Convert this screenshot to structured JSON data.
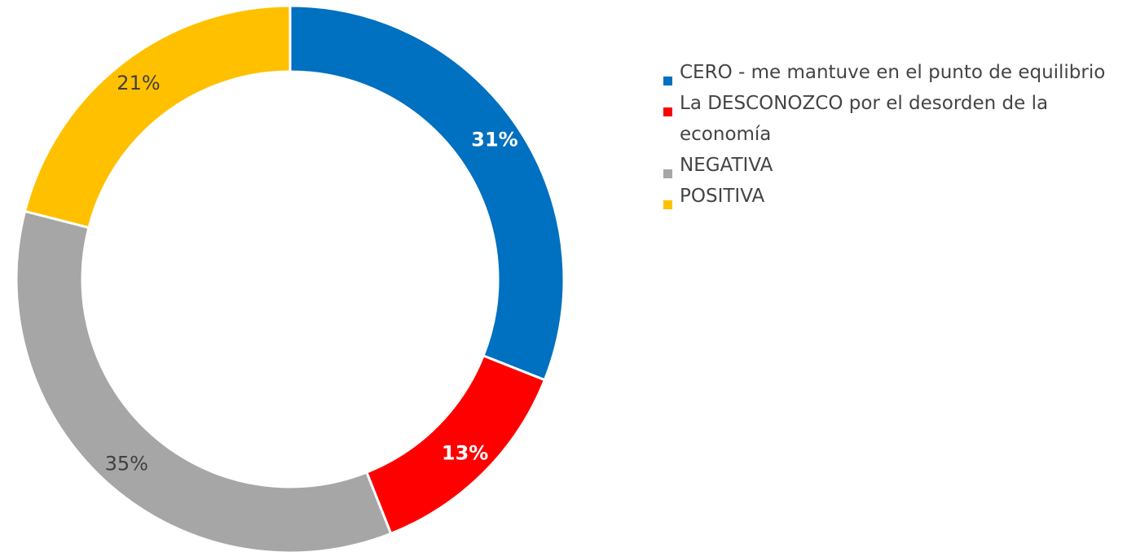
{
  "chart_data": {
    "type": "donut",
    "categories": [
      "CERO - me mantuve en el punto de equilibrio",
      "La DESCONOZCO por el desorden de la economía",
      "NEGATIVA",
      "POSITIVA"
    ],
    "values": [
      31,
      13,
      35,
      21
    ],
    "value_labels": [
      "31%",
      "13%",
      "35%",
      "21%"
    ],
    "colors": [
      "#0070c0",
      "#ff0000",
      "#a6a6a6",
      "#ffc000"
    ],
    "label_colors": [
      "#ffffff",
      "#ffffff",
      "#404040",
      "#404040"
    ],
    "legend": "right"
  }
}
